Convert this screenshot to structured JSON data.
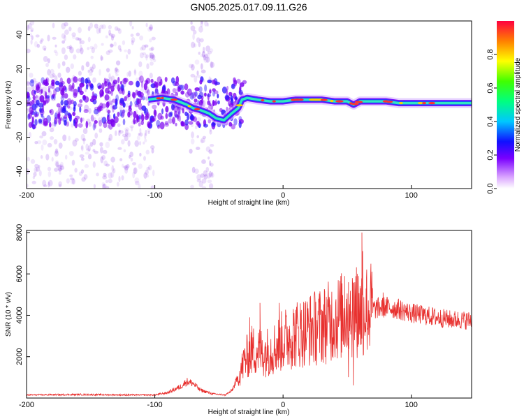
{
  "title": "GN05.2025.017.09.11.G26",
  "colors": {
    "snr_line": "#e8312f",
    "axis": "#000000",
    "blob": "#7a1ee6",
    "track_core": "#ff3030"
  },
  "chart_data": [
    {
      "type": "heatmap",
      "title": "GN05.2025.017.09.11.G26",
      "xlabel": "Height of straight line (km)",
      "ylabel": "Frequency (Hz)",
      "xlim": [
        -200,
        147
      ],
      "ylim": [
        -50,
        48
      ],
      "xticks": [
        "-200",
        "-100",
        "0",
        "100"
      ],
      "yticks": [
        "40",
        "20",
        "0",
        "-20",
        "-40"
      ],
      "colorbar": {
        "label": "Normalized spectral amplitude",
        "range": [
          0.0,
          1.0
        ],
        "ticks": [
          "0.0",
          "0.2",
          "0.4",
          "0.6",
          "0.8"
        ]
      },
      "track": {
        "x": [
          -105,
          -95,
          -85,
          -75,
          -70,
          -65,
          -58,
          -52,
          -46,
          -40,
          -35,
          -32,
          -28,
          -20,
          -10,
          0,
          10,
          20,
          30,
          40,
          50,
          55,
          60,
          70,
          80,
          90,
          100,
          110,
          120,
          130,
          147
        ],
        "y": [
          2,
          3,
          2,
          -1,
          -3,
          -4,
          -6,
          -9,
          -10,
          -6,
          -3,
          2,
          3,
          2,
          1,
          1,
          2,
          2,
          2,
          1,
          1,
          -1,
          1,
          1,
          1,
          0,
          0,
          0,
          0,
          0,
          0
        ]
      }
    },
    {
      "type": "line",
      "xlabel": "Height of straight line (km)",
      "ylabel": "SNR (10 * v/v)",
      "xlim": [
        -200,
        147
      ],
      "ylim": [
        0,
        8100
      ],
      "xticks": [
        "-200",
        "-100",
        "0",
        "100"
      ],
      "yticks": [
        "8000",
        "6000",
        "4000",
        "2000"
      ],
      "series": [
        {
          "name": "SNR",
          "envelope_x": [
            -200,
            -160,
            -120,
            -100,
            -90,
            -80,
            -75,
            -70,
            -65,
            -55,
            -45,
            -40,
            -35,
            -30,
            -25,
            -20,
            -15,
            -10,
            -5,
            0,
            10,
            20,
            30,
            40,
            50,
            55,
            60,
            65,
            70,
            80,
            90,
            100,
            110,
            120,
            130,
            147
          ],
          "envelope_y": [
            150,
            170,
            150,
            150,
            260,
            550,
            800,
            700,
            400,
            200,
            150,
            350,
            1000,
            1800,
            2300,
            2300,
            2200,
            2300,
            2500,
            2800,
            3100,
            3300,
            3500,
            3800,
            4100,
            4200,
            4200,
            4300,
            4300,
            4400,
            4300,
            4100,
            4000,
            3900,
            3800,
            3750
          ],
          "spike_x": [
            -30,
            -26,
            -18,
            -3,
            8,
            25,
            35,
            45,
            48,
            51,
            54,
            56,
            58,
            60,
            61.5,
            62,
            65,
            68,
            78
          ],
          "spike_y": [
            2400,
            3900,
            4600,
            4600,
            4300,
            4200,
            4800,
            5300,
            5900,
            5600,
            5800,
            5600,
            6000,
            5200,
            8000,
            7100,
            5800,
            5000,
            5100
          ]
        }
      ]
    }
  ]
}
